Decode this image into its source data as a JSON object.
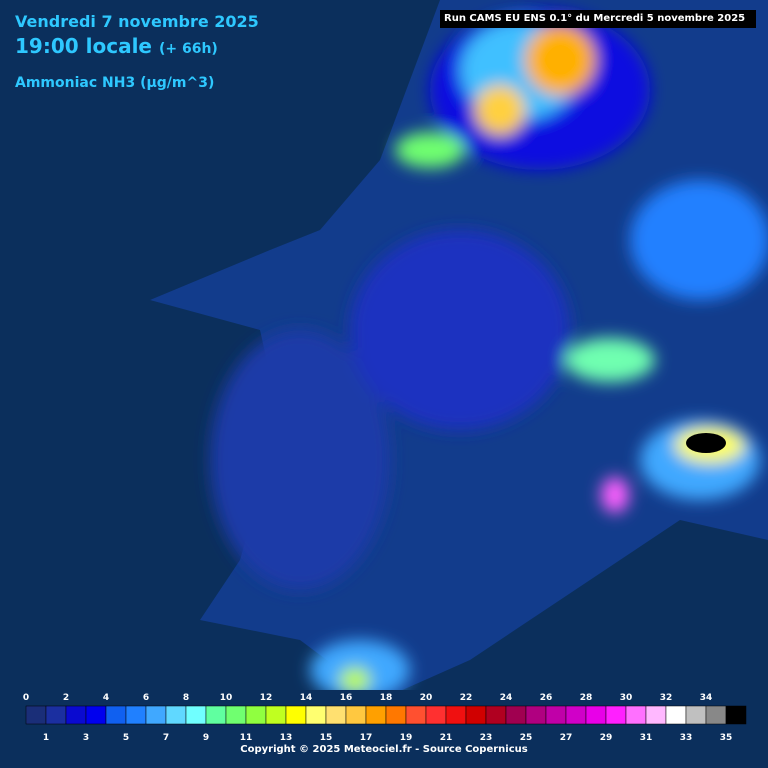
{
  "header": {
    "date": "Vendredi 7 novembre 2025",
    "time": "19:00 locale",
    "lead": "(+ 66h)",
    "variable": "Ammoniac NH3 (µg/m^3)",
    "run": "Run CAMS EU ENS 0.1° du Mercredi 5 novembre 2025"
  },
  "legend": {
    "labels": [
      0,
      1,
      2,
      3,
      4,
      5,
      6,
      7,
      8,
      9,
      10,
      11,
      12,
      13,
      14,
      15,
      16,
      17,
      18,
      19,
      20,
      21,
      22,
      23,
      24,
      25,
      26,
      27,
      28,
      29,
      30,
      31,
      32,
      33,
      34,
      35
    ],
    "colors": [
      "#1a2e78",
      "#1b2fa0",
      "#0a0ad0",
      "#0000ee",
      "#1060f0",
      "#2080ff",
      "#40a8ff",
      "#60d8ff",
      "#70ffff",
      "#60ffa0",
      "#70ff70",
      "#90ff40",
      "#c0ff20",
      "#ffff00",
      "#ffff70",
      "#ffe070",
      "#ffc840",
      "#ffa000",
      "#ff7800",
      "#ff5030",
      "#ff3030",
      "#f01010",
      "#d00000",
      "#b00020",
      "#a00050",
      "#b00080",
      "#c000a8",
      "#d000c8",
      "#e800e8",
      "#ff20ff",
      "#ff70ff",
      "#ffb8ff",
      "#ffffff",
      "#c0c0c0",
      "#888888",
      "#000000"
    ]
  },
  "footer": {
    "copyright": "Copyright © 2025 Meteociel.fr - Source Copernicus"
  }
}
